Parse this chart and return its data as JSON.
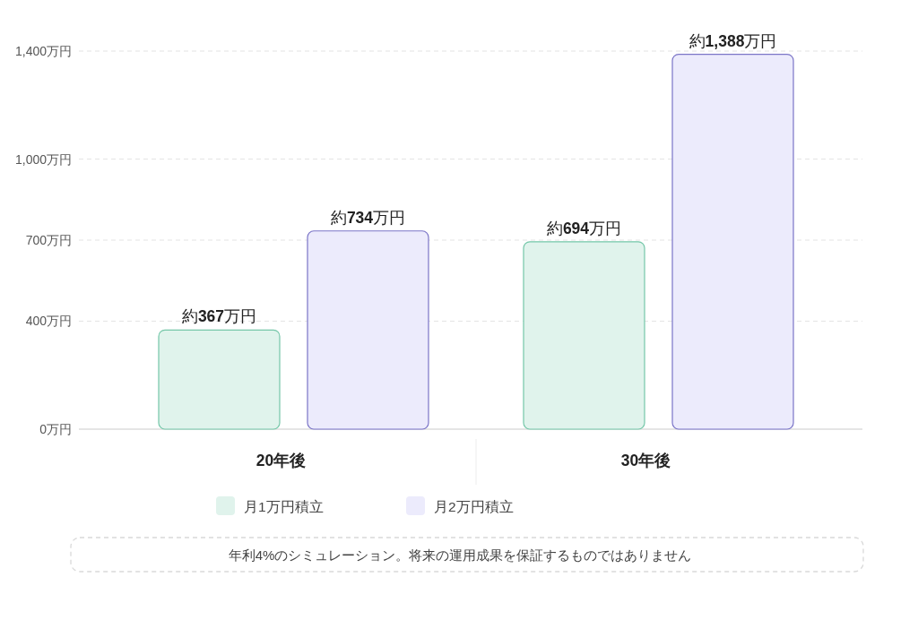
{
  "chart_data": {
    "type": "bar",
    "categories": [
      "20年後",
      "30年後"
    ],
    "series": [
      {
        "name": "月1万円積立",
        "color": "#e0f3ec",
        "values": [
          367,
          694
        ],
        "value_labels": [
          "約**367**万円",
          "約**694**万円"
        ]
      },
      {
        "name": "月2万円積立",
        "color": "#ecebfc",
        "values": [
          734,
          1388
        ],
        "value_labels": [
          "約**734**万円",
          "約**1,388**万円"
        ]
      }
    ],
    "ylim": [
      0,
      1400
    ],
    "yticks": [
      {
        "value": 0,
        "label": "0万円"
      },
      {
        "value": 400,
        "label": "400万円"
      },
      {
        "value": 700,
        "label": "700万円"
      },
      {
        "value": 1000,
        "label": "1,000万円"
      },
      {
        "value": 1400,
        "label": "1,400万円"
      }
    ],
    "grid": "y",
    "legend": "bottom",
    "annotations": [
      "年利4%のシミュレーション。将来の運用成果を保証するものではありません"
    ]
  }
}
